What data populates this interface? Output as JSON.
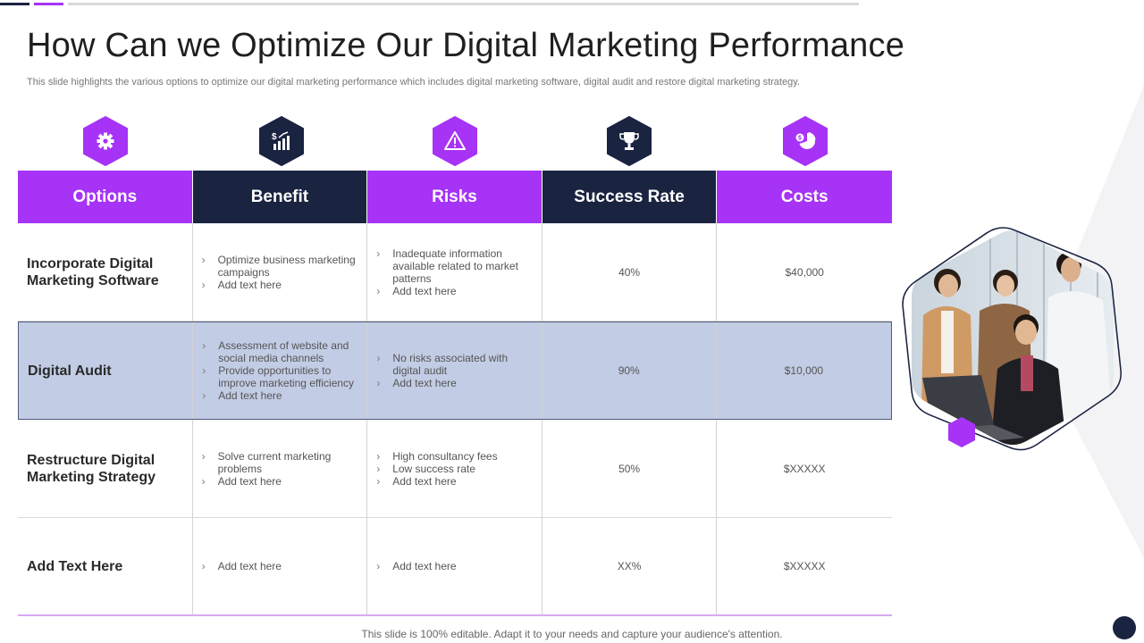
{
  "title": "How Can we Optimize Our Digital Marketing Performance",
  "subtitle": "This slide highlights the various options to optimize our digital marketing performance which includes digital marketing software, digital audit and restore digital marketing strategy.",
  "colors": {
    "purple": "#a633f5",
    "navy": "#1a2340",
    "highlight_row": "#c2cce4"
  },
  "icons": [
    "gear-icon",
    "dollar-chart-icon",
    "warning-icon",
    "trophy-icon",
    "pie-chart-icon"
  ],
  "headers": [
    "Options",
    "Benefit",
    "Risks",
    "Success Rate",
    "Costs"
  ],
  "rows": [
    {
      "option": "Incorporate Digital Marketing Software",
      "benefit": [
        "Optimize business marketing campaigns",
        "Add text here"
      ],
      "risks": [
        "Inadequate information available related to market patterns",
        "Add text here"
      ],
      "success_rate": "40%",
      "costs": "$40,000"
    },
    {
      "option": "Digital Audit",
      "benefit": [
        "Assessment of website and social media channels",
        "Provide opportunities to improve marketing efficiency",
        "Add text here"
      ],
      "risks": [
        "No risks associated with digital audit",
        "Add text here"
      ],
      "success_rate": "90%",
      "costs": "$10,000"
    },
    {
      "option": "Restructure Digital Marketing Strategy",
      "benefit": [
        "Solve current marketing problems",
        "Add text here"
      ],
      "risks": [
        "High consultancy fees",
        "Low success rate",
        "Add text here"
      ],
      "success_rate": "50%",
      "costs": "$XXXXX"
    },
    {
      "option": "Add Text Here",
      "benefit": [
        "Add text here"
      ],
      "risks": [
        "Add text here"
      ],
      "success_rate": "XX%",
      "costs": "$XXXXX"
    }
  ],
  "footer": "This slide is 100% editable. Adapt it to your needs and capture your audience's attention."
}
